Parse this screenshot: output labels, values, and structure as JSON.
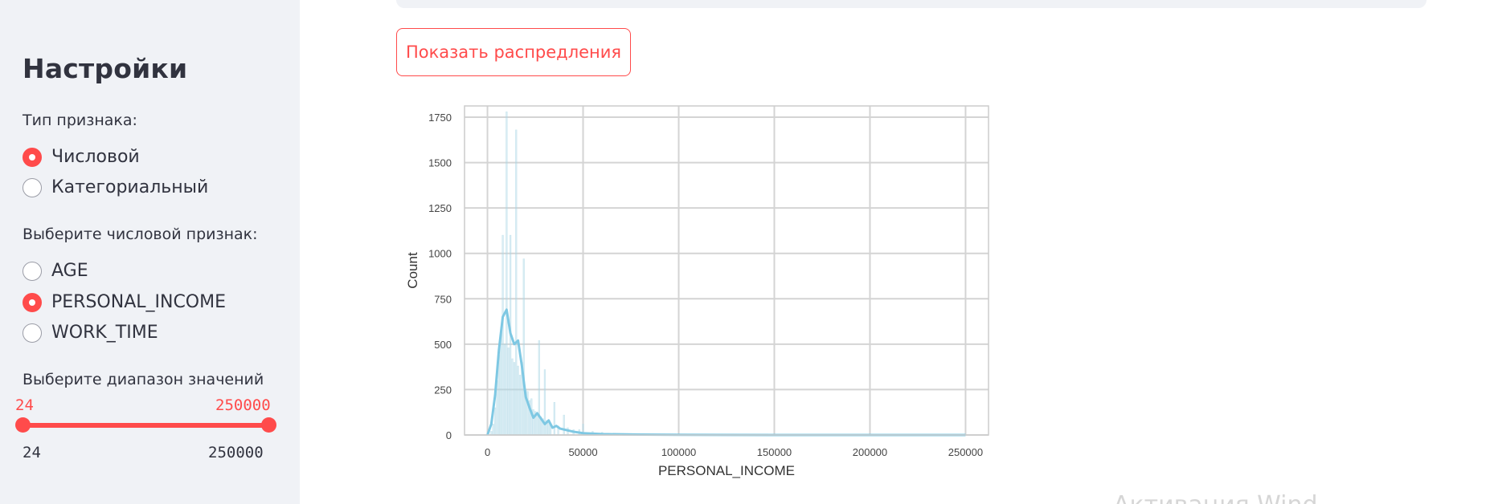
{
  "sidebar": {
    "title": "Настройки",
    "feature_type_label": "Тип признака:",
    "feature_types": [
      {
        "label": "Числовой",
        "checked": true
      },
      {
        "label": "Категориальный",
        "checked": false
      }
    ],
    "numeric_feature_label": "Выберите числовой признак:",
    "numeric_features": [
      {
        "label": "AGE",
        "checked": false
      },
      {
        "label": "PERSONAL_INCOME",
        "checked": true
      },
      {
        "label": "WORK_TIME",
        "checked": false
      }
    ],
    "range_label": "Выберите диапазон значений",
    "range": {
      "low_value": "24",
      "high_value": "250000",
      "min_label": "24",
      "max_label": "250000",
      "low_fraction": 0,
      "high_fraction": 1
    }
  },
  "main": {
    "show_button_label": "Показать распредления",
    "watermark_text": "Активация Wind"
  },
  "colors": {
    "accent": "#ff4b4b",
    "sidebar_bg": "#f0f2f6",
    "hist_bar": "#add8e6",
    "kde_line": "#7ec8e3"
  },
  "chart_data": {
    "type": "bar",
    "xlabel": "PERSONAL_INCOME",
    "ylabel": "Count",
    "xlim": [
      -12000,
      262000
    ],
    "ylim": [
      0,
      1750
    ],
    "xticks": [
      0,
      50000,
      100000,
      150000,
      200000,
      250000
    ],
    "yticks": [
      0,
      250,
      500,
      750,
      1000,
      1250,
      1500,
      1750
    ],
    "grid": true,
    "histogram": {
      "x": [
        2000,
        3000,
        4000,
        5000,
        6000,
        7000,
        8000,
        9000,
        10000,
        11000,
        12000,
        13000,
        14000,
        15000,
        16000,
        17000,
        18000,
        19000,
        20000,
        21000,
        22000,
        23000,
        24000,
        25000,
        26000,
        27000,
        28000,
        29000,
        30000,
        31000,
        32000,
        33000,
        35000,
        37000,
        40000,
        42000,
        45000,
        48000,
        50000,
        55000,
        60000
      ],
      "values": [
        20,
        60,
        150,
        300,
        440,
        550,
        1100,
        500,
        1780,
        480,
        1100,
        420,
        400,
        1680,
        380,
        330,
        400,
        970,
        250,
        240,
        190,
        200,
        140,
        130,
        120,
        520,
        100,
        90,
        360,
        80,
        70,
        60,
        180,
        50,
        110,
        40,
        30,
        30,
        60,
        20,
        15
      ]
    },
    "kde": {
      "x": [
        0,
        2000,
        4000,
        6000,
        8000,
        10000,
        12000,
        14000,
        16000,
        18000,
        20000,
        22000,
        24000,
        26000,
        28000,
        30000,
        32000,
        34000,
        36000,
        38000,
        40000,
        42000,
        45000,
        50000,
        60000,
        80000,
        100000,
        150000,
        200000,
        250000
      ],
      "values": [
        0,
        60,
        220,
        470,
        650,
        690,
        560,
        500,
        520,
        380,
        210,
        150,
        95,
        120,
        90,
        60,
        80,
        40,
        50,
        35,
        30,
        25,
        18,
        10,
        5,
        2,
        1,
        0,
        0,
        0
      ]
    }
  }
}
